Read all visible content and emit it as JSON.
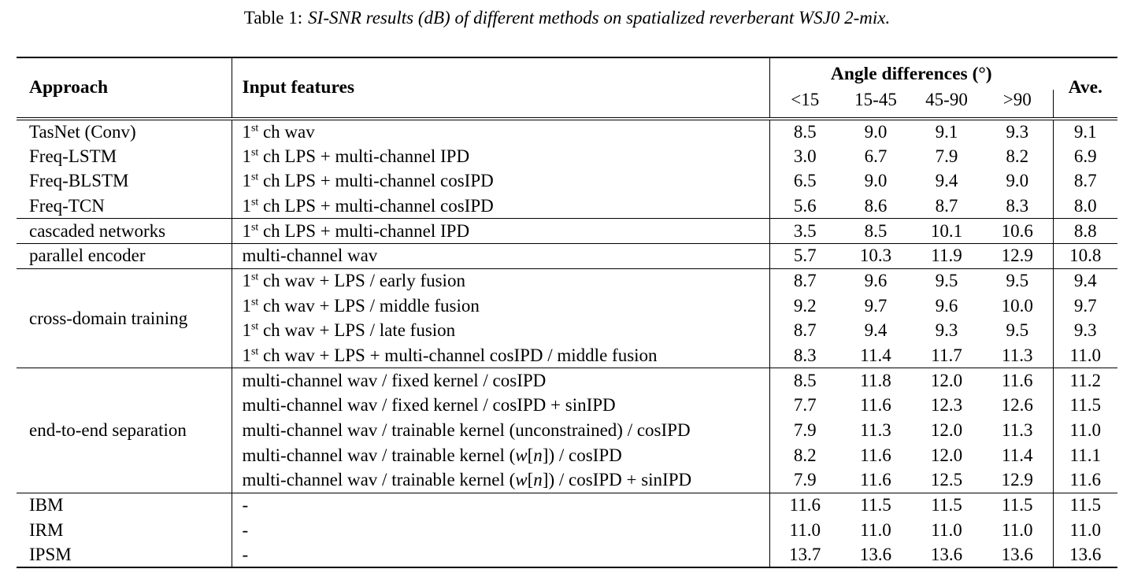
{
  "caption": {
    "label": "Table 1:",
    "title": "SI-SNR results (dB) of different methods on spatialized reverberant WSJ0 2-mix."
  },
  "table": {
    "col_headers": {
      "approach": "Approach",
      "input_features": "Input features",
      "angle_group": "Angle differences (°)",
      "angle_cols": [
        "<15",
        "15-45",
        "45-90",
        ">90"
      ],
      "ave": "Ave."
    },
    "sections": [
      {
        "group_label": null,
        "rows": [
          {
            "approach": "TasNet (Conv)",
            "features": "1^{st} ch wav",
            "values": [
              "8.5",
              "9.0",
              "9.1",
              "9.3"
            ],
            "ave": "9.1"
          },
          {
            "approach": "Freq-LSTM",
            "features": "1^{st} ch LPS + multi-channel IPD",
            "values": [
              "3.0",
              "6.7",
              "7.9",
              "8.2"
            ],
            "ave": "6.9"
          },
          {
            "approach": "Freq-BLSTM",
            "features": "1^{st} ch LPS + multi-channel cosIPD",
            "values": [
              "6.5",
              "9.0",
              "9.4",
              "9.0"
            ],
            "ave": "8.7"
          },
          {
            "approach": "Freq-TCN",
            "features": "1^{st} ch LPS + multi-channel cosIPD",
            "values": [
              "5.6",
              "8.6",
              "8.7",
              "8.3"
            ],
            "ave": "8.0"
          }
        ]
      },
      {
        "group_label": null,
        "rows": [
          {
            "approach": "cascaded networks",
            "features": "1^{st} ch LPS + multi-channel IPD",
            "values": [
              "3.5",
              "8.5",
              "10.1",
              "10.6"
            ],
            "ave": "8.8"
          }
        ]
      },
      {
        "group_label": null,
        "rows": [
          {
            "approach": "parallel encoder",
            "features": "multi-channel wav",
            "values": [
              "5.7",
              "10.3",
              "11.9",
              "12.9"
            ],
            "ave": "10.8"
          }
        ]
      },
      {
        "group_label": "cross-domain training",
        "rows": [
          {
            "approach": null,
            "features": "1^{st} ch wav + LPS / early fusion",
            "values": [
              "8.7",
              "9.6",
              "9.5",
              "9.5"
            ],
            "ave": "9.4"
          },
          {
            "approach": null,
            "features": "1^{st} ch wav + LPS / middle fusion",
            "values": [
              "9.2",
              "9.7",
              "9.6",
              "10.0"
            ],
            "ave": "9.7"
          },
          {
            "approach": null,
            "features": "1^{st} ch wav + LPS / late fusion",
            "values": [
              "8.7",
              "9.4",
              "9.3",
              "9.5"
            ],
            "ave": "9.3"
          },
          {
            "approach": null,
            "features": "1^{st} ch wav + LPS + multi-channel cosIPD / middle fusion",
            "values": [
              "8.3",
              "11.4",
              "11.7",
              "11.3"
            ],
            "ave": "11.0"
          }
        ]
      },
      {
        "group_label": "end-to-end separation",
        "rows": [
          {
            "approach": null,
            "features": "multi-channel wav / fixed kernel / cosIPD",
            "values": [
              "8.5",
              "11.8",
              "12.0",
              "11.6"
            ],
            "ave": "11.2"
          },
          {
            "approach": null,
            "features": "multi-channel wav / fixed kernel / cosIPD + sinIPD",
            "values": [
              "7.7",
              "11.6",
              "12.3",
              "12.6"
            ],
            "ave": "11.5"
          },
          {
            "approach": null,
            "features": "multi-channel wav / trainable kernel (unconstrained) / cosIPD",
            "values": [
              "7.9",
              "11.3",
              "12.0",
              "11.3"
            ],
            "ave": "11.0"
          },
          {
            "approach": null,
            "features": "multi-channel wav / trainable kernel (*w*[*n*]) / cosIPD",
            "values": [
              "8.2",
              "11.6",
              "12.0",
              "11.4"
            ],
            "ave": "11.1"
          },
          {
            "approach": null,
            "features": "multi-channel wav / trainable kernel (*w*[*n*]) / cosIPD + sinIPD",
            "values": [
              "7.9",
              "11.6",
              "12.5",
              "12.9"
            ],
            "ave": "11.6"
          }
        ]
      },
      {
        "group_label": null,
        "rows": [
          {
            "approach": "IBM",
            "features": "-",
            "values": [
              "11.6",
              "11.5",
              "11.5",
              "11.5"
            ],
            "ave": "11.5"
          },
          {
            "approach": "IRM",
            "features": "-",
            "values": [
              "11.0",
              "11.0",
              "11.0",
              "11.0"
            ],
            "ave": "11.0"
          },
          {
            "approach": "IPSM",
            "features": "-",
            "values": [
              "13.7",
              "13.6",
              "13.6",
              "13.6"
            ],
            "ave": "13.6"
          }
        ]
      }
    ]
  }
}
